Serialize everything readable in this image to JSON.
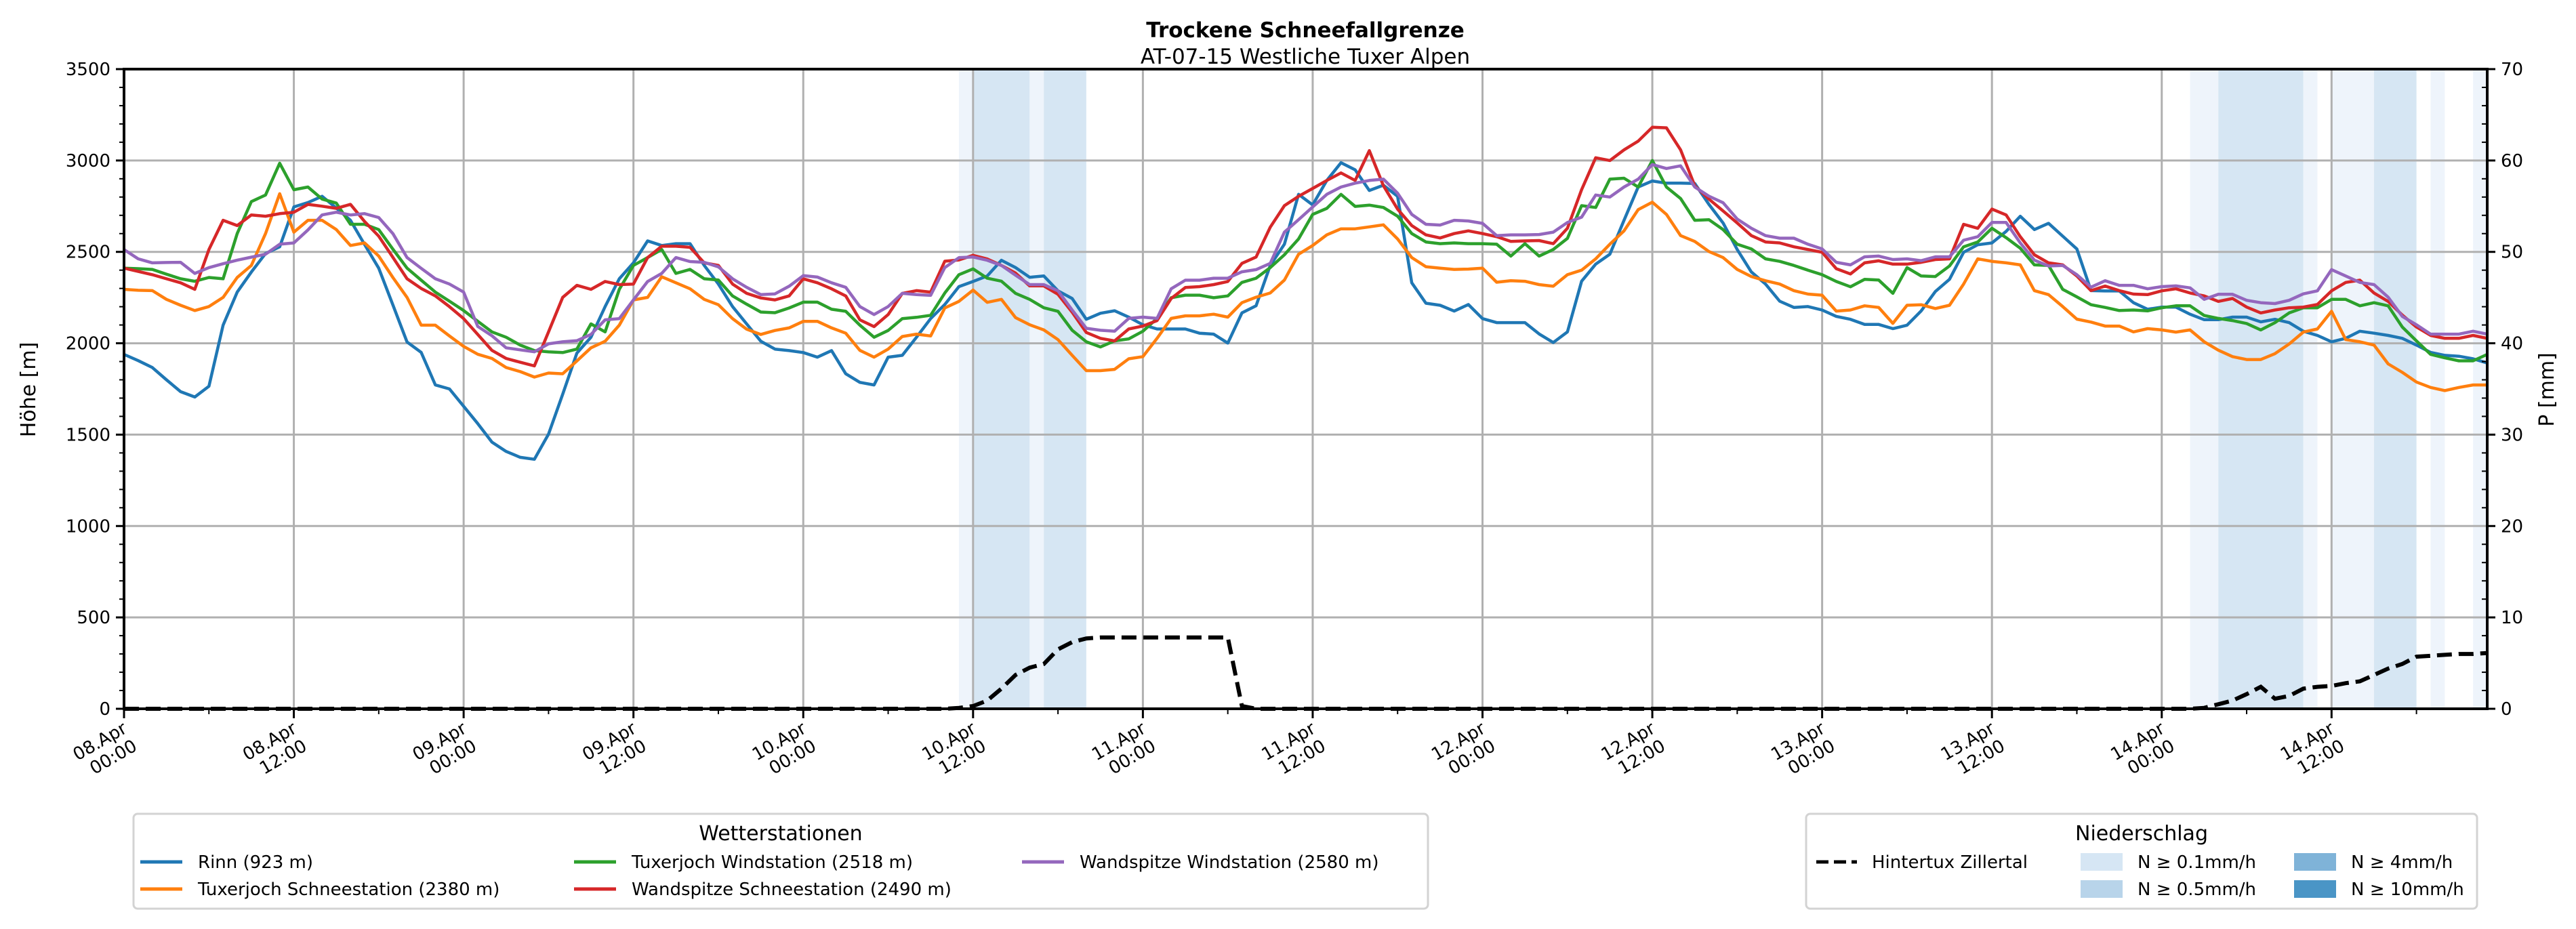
{
  "chart_data": {
    "type": "line",
    "title": "Trockene Schneefallgrenze",
    "subtitle": "AT-07-15 Westliche Tuxer Alpen",
    "ylabel": "Höhe [m]",
    "ylabel_right": "P [mm]",
    "ylim": [
      0,
      3500
    ],
    "ylim_right": [
      0,
      70
    ],
    "yticks": [
      "0",
      "500",
      "1000",
      "1500",
      "2000",
      "2500",
      "3000",
      "3500"
    ],
    "yticks_right": [
      "0",
      "10",
      "20",
      "30",
      "40",
      "50",
      "60",
      "70"
    ],
    "x_unit": "hours since 08.Apr 00:00",
    "xlim": [
      0,
      167
    ],
    "grid": true,
    "xticks": [
      {
        "hour": 0,
        "line1": "08.Apr",
        "line2": "00:00"
      },
      {
        "hour": 12,
        "line1": "08.Apr",
        "line2": "12:00"
      },
      {
        "hour": 24,
        "line1": "09.Apr",
        "line2": "00:00"
      },
      {
        "hour": 36,
        "line1": "09.Apr",
        "line2": "12:00"
      },
      {
        "hour": 48,
        "line1": "10.Apr",
        "line2": "00:00"
      },
      {
        "hour": 60,
        "line1": "10.Apr",
        "line2": "12:00"
      },
      {
        "hour": 72,
        "line1": "11.Apr",
        "line2": "00:00"
      },
      {
        "hour": 84,
        "line1": "11.Apr",
        "line2": "12:00"
      },
      {
        "hour": 96,
        "line1": "12.Apr",
        "line2": "00:00"
      },
      {
        "hour": 108,
        "line1": "12.Apr",
        "line2": "12:00"
      },
      {
        "hour": 120,
        "line1": "13.Apr",
        "line2": "00:00"
      },
      {
        "hour": 132,
        "line1": "13.Apr",
        "line2": "12:00"
      },
      {
        "hour": 144,
        "line1": "14.Apr",
        "line2": "00:00"
      },
      {
        "hour": 156,
        "line1": "14.Apr",
        "line2": "12:00"
      }
    ],
    "series": [
      {
        "name": "Rinn (923 m)",
        "color": "#1f77b4",
        "values": [
          1939,
          1905,
          1867,
          1800,
          1735,
          1706,
          1765,
          2099,
          2280,
          2390,
          2491,
          2528,
          2746,
          2770,
          2804,
          2740,
          2673,
          2540,
          2411,
          2210,
          2007,
          1950,
          1772,
          1750,
          1655,
          1560,
          1459,
          1408,
          1376,
          1365,
          1503,
          1721,
          1946,
          2033,
          2201,
          2353,
          2440,
          2560,
          2535,
          2545,
          2545,
          2426,
          2324,
          2201,
          2106,
          2011,
          1968,
          1960,
          1949,
          1924,
          1960,
          1833,
          1786,
          1772,
          1924,
          1934,
          2033,
          2135,
          2212,
          2310,
          2338,
          2368,
          2454,
          2414,
          2361,
          2368,
          2287,
          2245,
          2131,
          2164,
          2178,
          2143,
          2101,
          2078,
          2078,
          2078,
          2055,
          2050,
          2001,
          2166,
          2205,
          2426,
          2542,
          2815,
          2757,
          2891,
          2988,
          2949,
          2836,
          2865,
          2804,
          2331,
          2219,
          2208,
          2176,
          2212,
          2135,
          2113,
          2113,
          2113,
          2051,
          2004,
          2062,
          2339,
          2433,
          2487,
          2673,
          2855,
          2888,
          2876,
          2876,
          2874,
          2760,
          2658,
          2513,
          2390,
          2324,
          2230,
          2196,
          2201,
          2182,
          2147,
          2131,
          2103,
          2103,
          2080,
          2099,
          2177,
          2283,
          2350,
          2498,
          2539,
          2549,
          2612,
          2695,
          2622,
          2656,
          2586,
          2516,
          2288,
          2286,
          2286,
          2222,
          2186,
          2198,
          2198,
          2159,
          2129,
          2129,
          2143,
          2143,
          2117,
          2131,
          2113,
          2066,
          2043,
          2008,
          2027,
          2066,
          2055,
          2043,
          2027,
          1990,
          1950,
          1934,
          1929,
          1915,
          1892
        ]
      },
      {
        "name": "Tuxerjoch Schneestation (2380 m)",
        "color": "#ff7f0e",
        "values": [
          2295,
          2290,
          2288,
          2240,
          2208,
          2179,
          2201,
          2251,
          2360,
          2426,
          2600,
          2818,
          2608,
          2673,
          2673,
          2622,
          2535,
          2549,
          2477,
          2360,
          2251,
          2099,
          2099,
          2040,
          1983,
          1940,
          1917,
          1867,
          1845,
          1815,
          1837,
          1833,
          1903,
          1975,
          2011,
          2099,
          2237,
          2251,
          2364,
          2331,
          2298,
          2240,
          2211,
          2135,
          2077,
          2048,
          2070,
          2084,
          2120,
          2120,
          2084,
          2055,
          1961,
          1924,
          1968,
          2037,
          2050,
          2040,
          2193,
          2229,
          2291,
          2224,
          2240,
          2140,
          2101,
          2073,
          2020,
          1934,
          1850,
          1850,
          1857,
          1915,
          1927,
          2027,
          2136,
          2150,
          2150,
          2159,
          2143,
          2222,
          2252,
          2275,
          2346,
          2487,
          2535,
          2593,
          2626,
          2626,
          2637,
          2648,
          2571,
          2469,
          2419,
          2411,
          2404,
          2406,
          2411,
          2334,
          2342,
          2339,
          2321,
          2312,
          2375,
          2400,
          2462,
          2542,
          2615,
          2731,
          2772,
          2705,
          2589,
          2557,
          2502,
          2469,
          2404,
          2365,
          2342,
          2324,
          2288,
          2269,
          2263,
          2176,
          2182,
          2205,
          2196,
          2109,
          2208,
          2211,
          2190,
          2208,
          2324,
          2462,
          2448,
          2440,
          2429,
          2288,
          2266,
          2201,
          2132,
          2116,
          2094,
          2094,
          2062,
          2080,
          2073,
          2061,
          2073,
          2008,
          1962,
          1927,
          1911,
          1911,
          1943,
          1996,
          2061,
          2078,
          2175,
          2020,
          2008,
          1990,
          1887,
          1841,
          1788,
          1758,
          1741,
          1758,
          1772,
          1772
        ]
      },
      {
        "name": "Tuxerjoch Windstation (2518 m)",
        "color": "#2ca02c",
        "values": [
          2411,
          2408,
          2404,
          2378,
          2353,
          2339,
          2360,
          2353,
          2600,
          2775,
          2811,
          2985,
          2840,
          2855,
          2789,
          2767,
          2651,
          2651,
          2622,
          2515,
          2411,
          2345,
          2280,
          2230,
          2179,
          2120,
          2062,
          2033,
          1990,
          1960,
          1953,
          1949,
          1968,
          2106,
          2062,
          2295,
          2426,
          2469,
          2513,
          2382,
          2404,
          2353,
          2346,
          2259,
          2214,
          2171,
          2167,
          2193,
          2225,
          2225,
          2186,
          2175,
          2099,
          2033,
          2070,
          2135,
          2142,
          2153,
          2275,
          2375,
          2407,
          2356,
          2340,
          2273,
          2240,
          2194,
          2175,
          2071,
          2008,
          1980,
          2013,
          2024,
          2066,
          2136,
          2249,
          2263,
          2263,
          2249,
          2259,
          2333,
          2356,
          2414,
          2484,
          2571,
          2705,
          2738,
          2815,
          2749,
          2756,
          2743,
          2695,
          2600,
          2554,
          2545,
          2549,
          2545,
          2545,
          2542,
          2477,
          2545,
          2477,
          2513,
          2574,
          2753,
          2743,
          2898,
          2903,
          2855,
          3000,
          2855,
          2792,
          2673,
          2676,
          2622,
          2542,
          2516,
          2462,
          2448,
          2426,
          2400,
          2375,
          2338,
          2309,
          2350,
          2346,
          2273,
          2414,
          2368,
          2365,
          2423,
          2528,
          2554,
          2629,
          2578,
          2520,
          2429,
          2426,
          2295,
          2254,
          2211,
          2196,
          2179,
          2182,
          2177,
          2194,
          2205,
          2205,
          2152,
          2136,
          2124,
          2108,
          2073,
          2113,
          2166,
          2194,
          2194,
          2240,
          2240,
          2205,
          2222,
          2205,
          2089,
          2013,
          1939,
          1920,
          1904,
          1904,
          1939
        ]
      },
      {
        "name": "Wandspitze Schneestation (2490 m)",
        "color": "#d62728",
        "values": [
          2411,
          2393,
          2375,
          2353,
          2331,
          2295,
          2513,
          2673,
          2644,
          2702,
          2695,
          2709,
          2717,
          2760,
          2750,
          2738,
          2760,
          2666,
          2586,
          2470,
          2353,
          2300,
          2259,
          2200,
          2135,
          2048,
          1961,
          1917,
          1896,
          1876,
          2062,
          2251,
          2317,
          2295,
          2338,
          2321,
          2324,
          2469,
          2531,
          2531,
          2525,
          2440,
          2426,
          2324,
          2273,
          2248,
          2237,
          2259,
          2353,
          2331,
          2298,
          2259,
          2128,
          2091,
          2157,
          2273,
          2288,
          2280,
          2449,
          2456,
          2481,
          2461,
          2426,
          2384,
          2314,
          2314,
          2268,
          2170,
          2059,
          2027,
          2013,
          2078,
          2094,
          2124,
          2245,
          2305,
          2310,
          2321,
          2338,
          2437,
          2472,
          2635,
          2753,
          2804,
          2847,
          2891,
          2932,
          2891,
          3054,
          2862,
          2734,
          2644,
          2593,
          2576,
          2600,
          2615,
          2600,
          2583,
          2557,
          2560,
          2562,
          2545,
          2629,
          2840,
          3015,
          3000,
          3058,
          3106,
          3182,
          3179,
          3058,
          2862,
          2789,
          2724,
          2658,
          2589,
          2554,
          2549,
          2528,
          2513,
          2498,
          2408,
          2379,
          2440,
          2451,
          2433,
          2433,
          2443,
          2458,
          2462,
          2651,
          2629,
          2734,
          2702,
          2583,
          2484,
          2440,
          2429,
          2368,
          2288,
          2313,
          2288,
          2269,
          2266,
          2287,
          2298,
          2275,
          2259,
          2229,
          2245,
          2198,
          2166,
          2182,
          2194,
          2198,
          2212,
          2287,
          2333,
          2345,
          2275,
          2229,
          2154,
          2089,
          2043,
          2027,
          2027,
          2043,
          2027
        ]
      },
      {
        "name": "Wandspitze Windstation (2580 m)",
        "color": "#9467bd",
        "values": [
          2513,
          2462,
          2440,
          2442,
          2443,
          2382,
          2414,
          2435,
          2455,
          2471,
          2487,
          2542,
          2549,
          2620,
          2702,
          2717,
          2702,
          2709,
          2688,
          2600,
          2469,
          2410,
          2353,
          2324,
          2280,
          2092,
          2041,
          1975,
          1964,
          1953,
          1997,
          2008,
          2014,
          2048,
          2128,
          2135,
          2237,
          2338,
          2382,
          2469,
          2447,
          2443,
          2418,
          2353,
          2306,
          2266,
          2270,
          2312,
          2370,
          2362,
          2331,
          2306,
          2201,
          2157,
          2201,
          2273,
          2266,
          2262,
          2414,
          2468,
          2472,
          2454,
          2426,
          2372,
          2321,
          2321,
          2287,
          2182,
          2082,
          2071,
          2066,
          2136,
          2143,
          2136,
          2298,
          2345,
          2345,
          2356,
          2356,
          2391,
          2403,
          2437,
          2608,
          2676,
          2746,
          2815,
          2855,
          2876,
          2891,
          2898,
          2821,
          2705,
          2651,
          2647,
          2673,
          2669,
          2656,
          2589,
          2593,
          2593,
          2595,
          2608,
          2661,
          2690,
          2811,
          2800,
          2855,
          2898,
          2978,
          2956,
          2971,
          2855,
          2805,
          2769,
          2680,
          2629,
          2589,
          2575,
          2575,
          2542,
          2516,
          2443,
          2429,
          2473,
          2477,
          2458,
          2462,
          2452,
          2473,
          2473,
          2564,
          2583,
          2661,
          2661,
          2549,
          2455,
          2423,
          2426,
          2375,
          2307,
          2342,
          2317,
          2317,
          2298,
          2310,
          2314,
          2303,
          2240,
          2268,
          2268,
          2235,
          2222,
          2217,
          2235,
          2270,
          2287,
          2403,
          2368,
          2333,
          2321,
          2252,
          2147,
          2101,
          2050,
          2050,
          2050,
          2066,
          2050
        ]
      }
    ],
    "precipitation": {
      "name": "Hintertux Zillertal",
      "unit": "mm",
      "points": [
        [
          0,
          0
        ],
        [
          58,
          0
        ],
        [
          59,
          0.1
        ],
        [
          60,
          0.3
        ],
        [
          61,
          0.9
        ],
        [
          62,
          2.2
        ],
        [
          63,
          3.7
        ],
        [
          64,
          4.5
        ],
        [
          65,
          4.9
        ],
        [
          66,
          6.5
        ],
        [
          67,
          7.3
        ],
        [
          68,
          7.7
        ],
        [
          69,
          7.8
        ],
        [
          78,
          7.8
        ],
        [
          79,
          0.3
        ],
        [
          80,
          0
        ],
        [
          146,
          0
        ],
        [
          147,
          0.1
        ],
        [
          148,
          0.5
        ],
        [
          149,
          0.9
        ],
        [
          150,
          1.6
        ],
        [
          151,
          2.4
        ],
        [
          152,
          1.1
        ],
        [
          153,
          1.4
        ],
        [
          154,
          2.2
        ],
        [
          155,
          2.4
        ],
        [
          156,
          2.5
        ],
        [
          157,
          2.8
        ],
        [
          158,
          3.0
        ],
        [
          159,
          3.7
        ],
        [
          160,
          4.4
        ],
        [
          161,
          4.9
        ],
        [
          162,
          5.7
        ],
        [
          163,
          5.8
        ],
        [
          164,
          5.9
        ],
        [
          165,
          6.0
        ],
        [
          166,
          6.0
        ],
        [
          167,
          6.1
        ]
      ]
    },
    "intensity_bands": [
      {
        "from": 59,
        "to": 60,
        "level": "N ≥ 0.1mm/h"
      },
      {
        "from": 60,
        "to": 64,
        "level": "N ≥ 0.5mm/h"
      },
      {
        "from": 64,
        "to": 65,
        "level": "N ≥ 0.1mm/h"
      },
      {
        "from": 65,
        "to": 68,
        "level": "N ≥ 0.5mm/h"
      },
      {
        "from": 146,
        "to": 148,
        "level": "N ≥ 0.1mm/h"
      },
      {
        "from": 148,
        "to": 154,
        "level": "N ≥ 0.5mm/h"
      },
      {
        "from": 154,
        "to": 155,
        "level": "N ≥ 0.1mm/h"
      },
      {
        "from": 156,
        "to": 159,
        "level": "N ≥ 0.1mm/h"
      },
      {
        "from": 159,
        "to": 162,
        "level": "N ≥ 0.5mm/h"
      },
      {
        "from": 163,
        "to": 164,
        "level": "N ≥ 0.1mm/h"
      },
      {
        "from": 166,
        "to": 167,
        "level": "N ≥ 0.1mm/h"
      }
    ],
    "band_colors": {
      "N ≥ 0.1mm/h": "#eef4fb",
      "N ≥ 0.5mm/h": "#d6e6f3"
    },
    "legend_stations": {
      "title": "Wetterstationen",
      "placement": "bottom-left",
      "entries": [
        "Rinn (923 m)",
        "Tuxerjoch Windstation (2518 m)",
        "Wandspitze Windstation (2580 m)",
        "Tuxerjoch Schneestation (2380 m)",
        "Wandspitze Schneestation (2490 m)"
      ]
    },
    "legend_precip": {
      "title": "Niederschlag",
      "placement": "bottom-right",
      "line_entry": "Hintertux Zillertal",
      "patches": [
        {
          "label": "N ≥ 0.1mm/h",
          "color": "#d6e6f4"
        },
        {
          "label": "N ≥ 0.5mm/h",
          "color": "#b8d4ea"
        },
        {
          "label": "N ≥ 4mm/h",
          "color": "#7fb3d8"
        },
        {
          "label": "N ≥ 10mm/h",
          "color": "#4a95c6"
        }
      ]
    }
  }
}
